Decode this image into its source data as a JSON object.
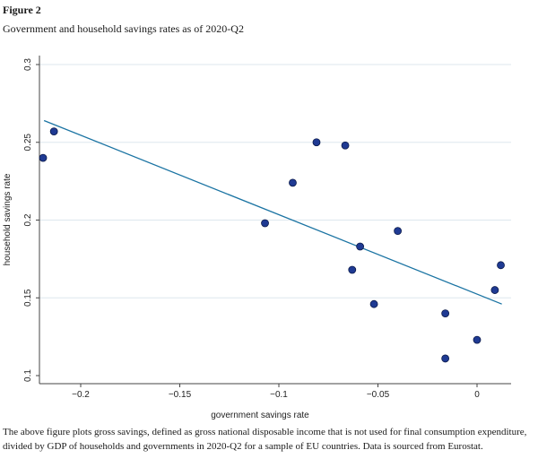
{
  "figure": {
    "label": "Figure 2",
    "title": "Government and household savings rates as of 2020-Q2",
    "caption": "The above figure plots gross savings, defined as gross national disposable income that is not used for final consumption expenditure, divided by GDP of households and governments in 2020-Q2 for a sample of EU countries. Data is sourced from Eurostat."
  },
  "chart_data": {
    "type": "scatter",
    "xlabel": "government savings rate",
    "ylabel": "household savings rate",
    "xlim": [
      -0.22,
      0.012
    ],
    "ylim": [
      0.1,
      0.3
    ],
    "x_ticks": [
      -0.2,
      -0.15,
      -0.1,
      -0.05,
      0
    ],
    "x_tick_labels": [
      "−0.2",
      "−0.15",
      "−0.1",
      "−0.05",
      "0"
    ],
    "y_ticks": [
      0.1,
      0.15,
      0.2,
      0.25,
      0.3
    ],
    "y_tick_labels": [
      "0.1",
      "0.15",
      "0.2",
      "0.25",
      "0.3"
    ],
    "grid": "horizontal",
    "points": [
      {
        "x": -0.219,
        "y": 0.24
      },
      {
        "x": -0.2135,
        "y": 0.257
      },
      {
        "x": -0.107,
        "y": 0.198
      },
      {
        "x": -0.093,
        "y": 0.224
      },
      {
        "x": -0.081,
        "y": 0.25
      },
      {
        "x": -0.0665,
        "y": 0.248
      },
      {
        "x": -0.063,
        "y": 0.168
      },
      {
        "x": -0.059,
        "y": 0.183
      },
      {
        "x": -0.052,
        "y": 0.146
      },
      {
        "x": -0.04,
        "y": 0.193
      },
      {
        "x": -0.016,
        "y": 0.14
      },
      {
        "x": -0.016,
        "y": 0.111
      },
      {
        "x": 0.0,
        "y": 0.123
      },
      {
        "x": 0.009,
        "y": 0.155
      },
      {
        "x": 0.012,
        "y": 0.171
      }
    ],
    "fit_line": {
      "x": [
        -0.2185,
        0.0125
      ],
      "y": [
        0.264,
        0.146
      ]
    },
    "colors": {
      "marker_fill": "#1f3a93",
      "marker_edge": "#0b1a4a",
      "fit_line": "#1b74a3",
      "grid": "#dde7ee"
    }
  }
}
